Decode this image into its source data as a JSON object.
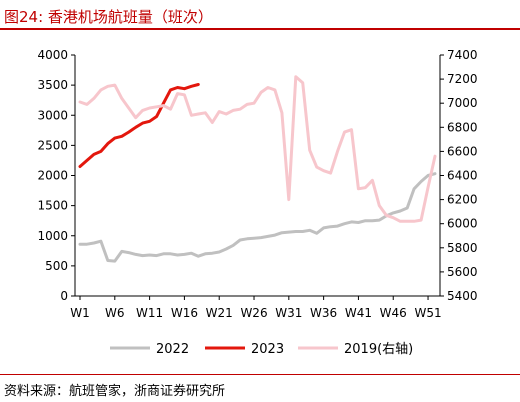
{
  "figure": {
    "title": "图24:   香港机场航班量（班次）",
    "source": "资料来源：航班管家，浙商证券研究所"
  },
  "chart_data": {
    "type": "line",
    "title": "香港机场航班量（班次）",
    "x_tick_labels": [
      "W1",
      "W6",
      "W11",
      "W16",
      "W21",
      "W26",
      "W31",
      "W36",
      "W41",
      "W46",
      "W51"
    ],
    "x_range": [
      1,
      52
    ],
    "y_left": {
      "ticks": [
        0,
        500,
        1000,
        1500,
        2000,
        2500,
        3000,
        3500,
        4000
      ],
      "range": [
        0,
        4000
      ]
    },
    "y_right": {
      "ticks": [
        5400,
        5600,
        5800,
        6000,
        6200,
        6400,
        6600,
        6800,
        7000,
        7200,
        7400
      ],
      "range": [
        5400,
        7400
      ],
      "label": "右轴"
    },
    "legend_position": "bottom",
    "series": [
      {
        "name": "2022",
        "axis": "left",
        "color": "#c0c0c0",
        "x": [
          1,
          2,
          3,
          4,
          5,
          6,
          7,
          8,
          9,
          10,
          11,
          12,
          13,
          14,
          15,
          16,
          17,
          18,
          19,
          20,
          21,
          22,
          23,
          24,
          25,
          26,
          27,
          28,
          29,
          30,
          31,
          32,
          33,
          34,
          35,
          36,
          37,
          38,
          39,
          40,
          41,
          42,
          43,
          44,
          45,
          46,
          47,
          48,
          49,
          50,
          51,
          52
        ],
        "values": [
          860,
          860,
          880,
          910,
          590,
          580,
          740,
          720,
          690,
          670,
          680,
          670,
          700,
          700,
          680,
          690,
          710,
          660,
          700,
          710,
          730,
          780,
          840,
          930,
          950,
          960,
          970,
          990,
          1010,
          1050,
          1060,
          1070,
          1070,
          1090,
          1040,
          1130,
          1150,
          1160,
          1200,
          1230,
          1220,
          1250,
          1250,
          1260,
          1330,
          1380,
          1410,
          1460,
          1780,
          1900,
          2000,
          2030
        ]
      },
      {
        "name": "2023",
        "axis": "left",
        "color": "#e3170d",
        "x": [
          1,
          2,
          3,
          4,
          5,
          6,
          7,
          8,
          9,
          10,
          11,
          12,
          13,
          14,
          15,
          16,
          17,
          18
        ],
        "values": [
          2150,
          2250,
          2350,
          2400,
          2530,
          2620,
          2650,
          2720,
          2800,
          2870,
          2900,
          2980,
          3200,
          3420,
          3460,
          3440,
          3480,
          3510
        ]
      },
      {
        "name": "2019(右轴)",
        "axis": "right",
        "color": "#f7c6cc",
        "x": [
          1,
          2,
          3,
          4,
          5,
          6,
          7,
          8,
          9,
          10,
          11,
          12,
          13,
          14,
          15,
          16,
          17,
          18,
          19,
          20,
          21,
          22,
          23,
          24,
          25,
          26,
          27,
          28,
          29,
          30,
          31,
          32,
          33,
          34,
          35,
          36,
          37,
          38,
          39,
          40,
          41,
          42,
          43,
          44,
          45,
          46,
          47,
          48,
          49,
          50,
          51,
          52
        ],
        "values": [
          7010,
          6990,
          7040,
          7110,
          7140,
          7150,
          7040,
          6960,
          6880,
          6940,
          6960,
          6970,
          6980,
          6950,
          7080,
          7070,
          6900,
          6910,
          6920,
          6840,
          6930,
          6910,
          6940,
          6950,
          6990,
          7000,
          7090,
          7130,
          7110,
          6920,
          6200,
          7220,
          7170,
          6610,
          6470,
          6440,
          6420,
          6600,
          6760,
          6780,
          6290,
          6300,
          6360,
          6150,
          6070,
          6050,
          6020,
          6020,
          6020,
          6030,
          6300,
          6560
        ]
      }
    ]
  }
}
